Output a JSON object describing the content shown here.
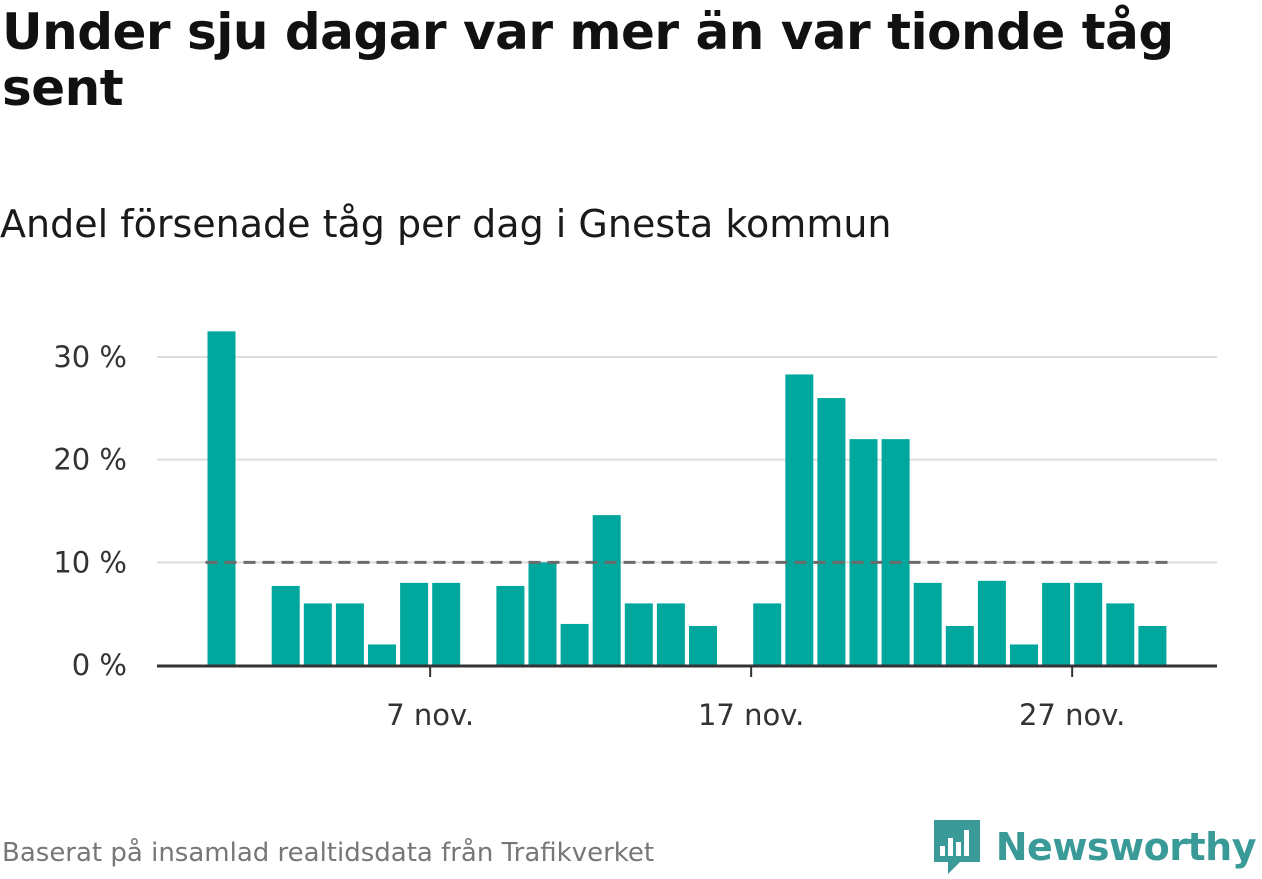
{
  "header": {
    "title": "Under sju dagar var mer än var tionde tåg sent",
    "subtitle": "Andel försenade tåg per dag i Gnesta kommun"
  },
  "chart_data": {
    "type": "bar",
    "title": "Under sju dagar var mer än var tionde tåg sent",
    "subtitle": "Andel försenade tåg per dag i Gnesta kommun",
    "xlabel": "",
    "ylabel": "",
    "x": [
      "2023-11-01",
      "2023-11-02",
      "2023-11-03",
      "2023-11-04",
      "2023-11-05",
      "2023-11-06",
      "2023-11-07",
      "2023-11-08",
      "2023-11-09",
      "2023-11-10",
      "2023-11-11",
      "2023-11-12",
      "2023-11-13",
      "2023-11-14",
      "2023-11-15",
      "2023-11-16",
      "2023-11-17",
      "2023-11-18",
      "2023-11-19",
      "2023-11-20",
      "2023-11-21",
      "2023-11-22",
      "2023-11-23",
      "2023-11-24",
      "2023-11-25",
      "2023-11-26",
      "2023-11-27",
      "2023-11-28",
      "2023-11-29",
      "2023-11-30"
    ],
    "values": [
      32.5,
      null,
      7.7,
      6.0,
      6.0,
      2.0,
      8.0,
      8.0,
      null,
      7.7,
      10.0,
      4.0,
      14.6,
      6.0,
      6.0,
      3.8,
      null,
      6.0,
      28.3,
      26.0,
      22.0,
      22.0,
      8.0,
      3.8,
      8.2,
      2.0,
      8.0,
      8.0,
      6.0,
      3.8
    ],
    "reference_line": {
      "value": 10,
      "style": "dashed"
    },
    "ylim": [
      0,
      35
    ],
    "yticks": [
      0,
      10,
      20,
      30
    ],
    "ytick_labels": [
      "0 %",
      "10 %",
      "20 %",
      "30 %"
    ],
    "xticks": [
      "2023-11-07",
      "2023-11-17",
      "2023-11-27"
    ],
    "xtick_labels": [
      "7 nov.",
      "17 nov.",
      "27 nov."
    ],
    "grid": true,
    "legend": "none",
    "colors": {
      "bar": "#00a79d",
      "gridline": "#dddddd",
      "reference": "#6b6b6b",
      "axis": "#333333"
    }
  },
  "footer": {
    "note": "Baserat på insamlad realtidsdata från Trafikverket",
    "brand": "Newsworthy",
    "logo_icon": "bar-chart-speech-bubble-icon",
    "brand_color": "#3a9a98"
  }
}
